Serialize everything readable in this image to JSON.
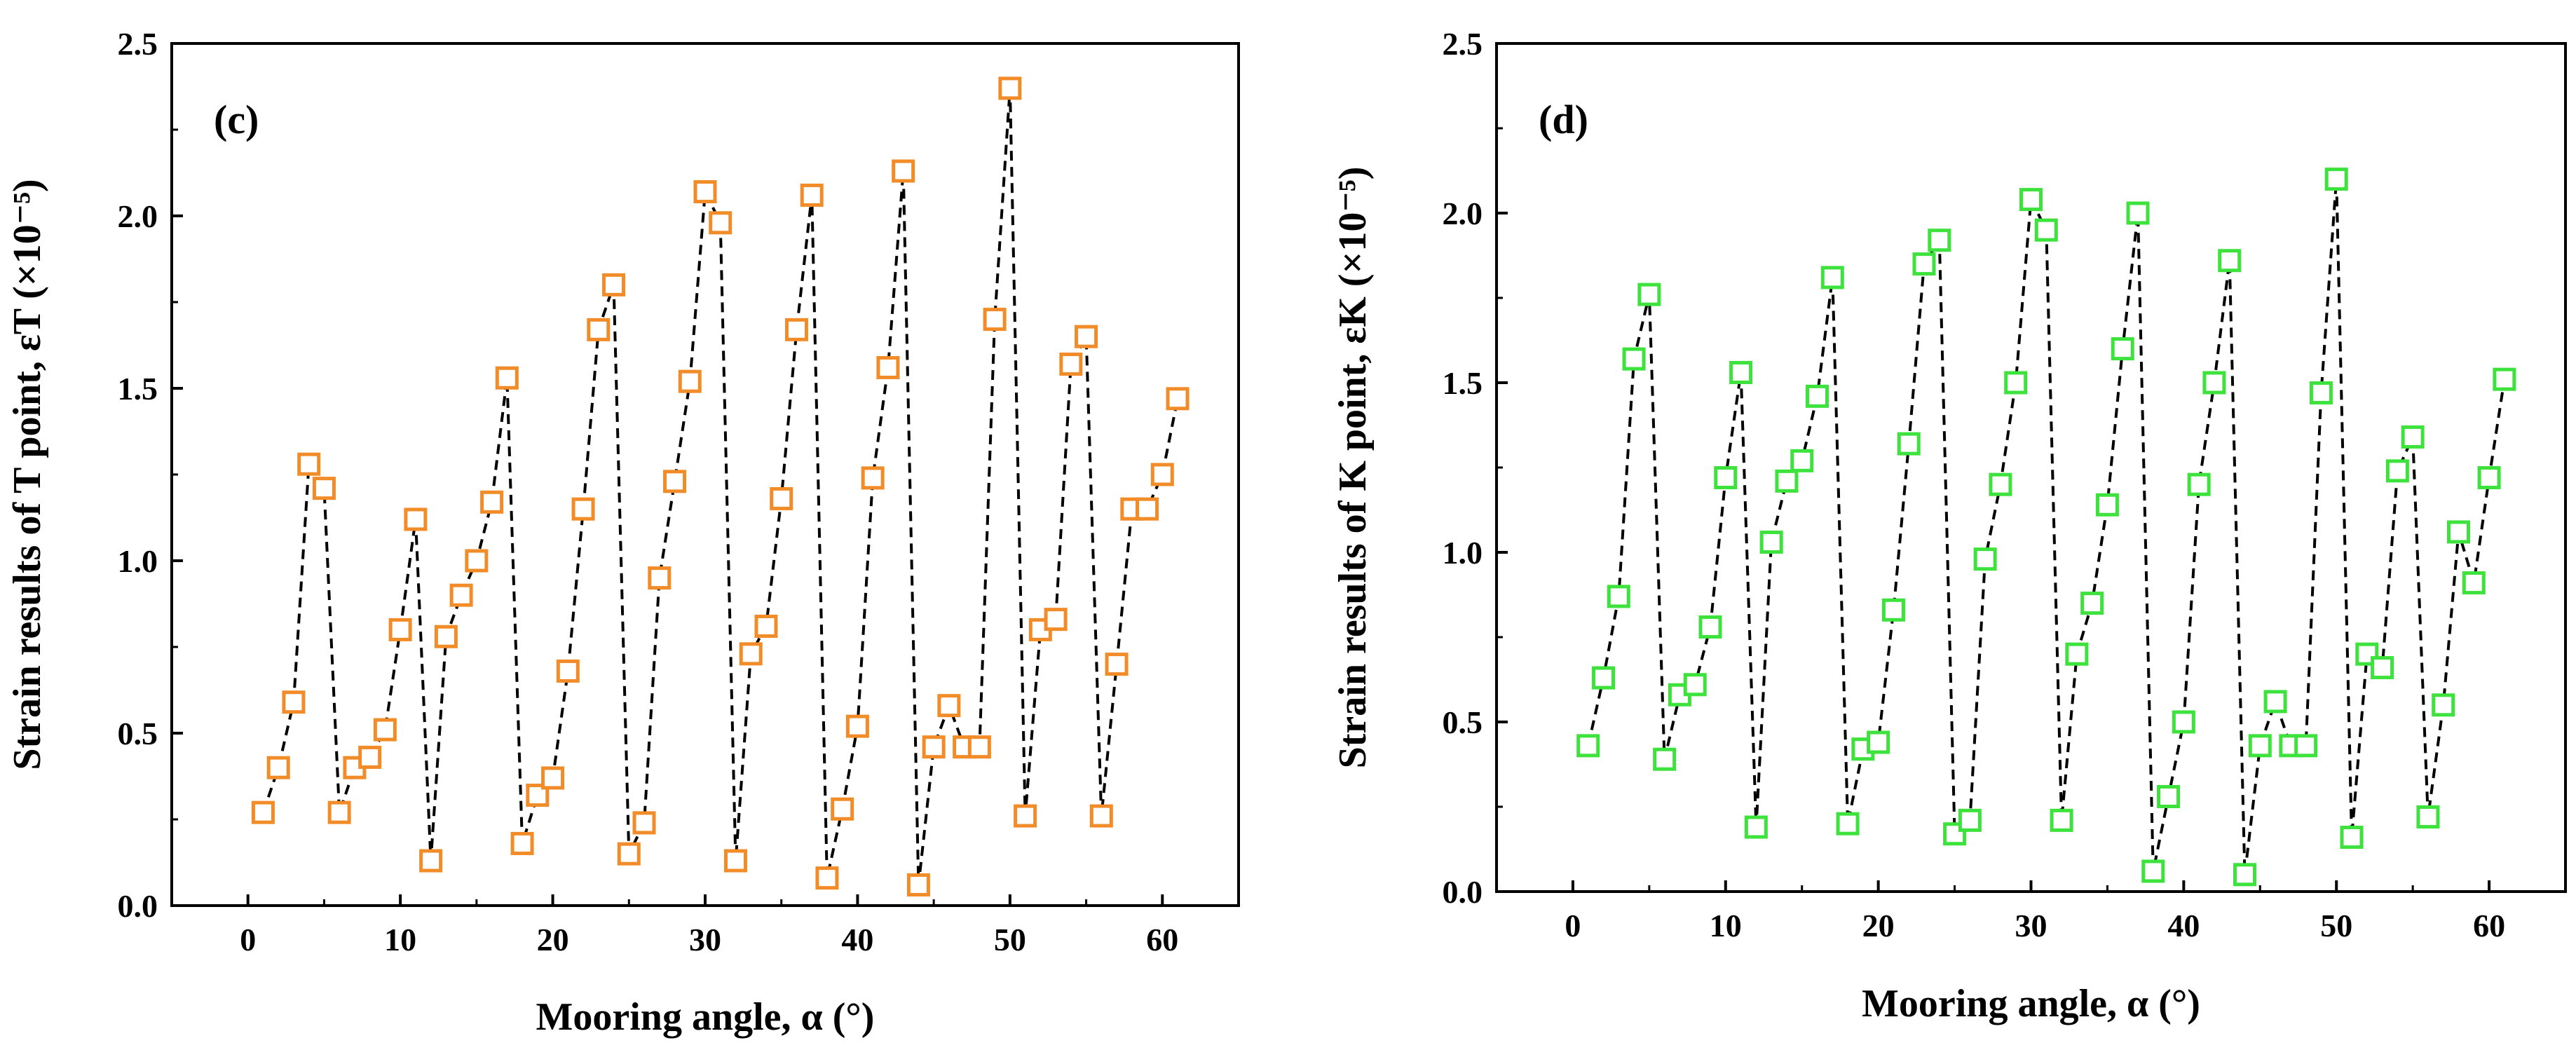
{
  "chart_data": [
    {
      "type": "scatter",
      "panel_label": "(c)",
      "xlabel": "Mooring angle, α (°)",
      "ylabel": "Strain results of T point, εT (×10⁻⁵)",
      "xlim": [
        -5,
        65
      ],
      "ylim": [
        0.0,
        2.5
      ],
      "xticks": [
        "0",
        "10",
        "20",
        "30",
        "40",
        "50",
        "60"
      ],
      "yticks": [
        "0.0",
        "0.5",
        "1.0",
        "1.5",
        "2.0",
        "2.5"
      ],
      "marker_color": "#F28C28",
      "line_style": "dashed-black",
      "x": [
        1,
        2,
        3,
        4,
        5,
        6,
        7,
        8,
        9,
        10,
        11,
        12,
        13,
        14,
        15,
        16,
        17,
        18,
        19,
        20,
        21,
        22,
        23,
        24,
        25,
        26,
        27,
        28,
        29,
        30,
        31,
        32,
        33,
        34,
        35,
        36,
        37,
        38,
        39,
        40,
        41,
        42,
        43,
        44,
        45,
        46,
        47,
        48,
        49,
        50,
        51,
        52,
        53,
        54,
        55,
        56,
        57,
        58,
        59,
        60,
        61
      ],
      "values": [
        0.27,
        0.4,
        0.59,
        1.28,
        1.21,
        0.27,
        0.4,
        0.43,
        0.51,
        0.8,
        1.12,
        0.13,
        0.78,
        0.9,
        1.0,
        1.17,
        1.53,
        0.18,
        0.32,
        0.37,
        0.68,
        1.15,
        1.67,
        1.8,
        0.15,
        0.24,
        0.95,
        1.23,
        1.52,
        2.07,
        1.98,
        0.13,
        0.73,
        0.81,
        1.18,
        1.67,
        2.06,
        0.08,
        0.28,
        0.52,
        1.24,
        1.56,
        2.13,
        0.06,
        0.46,
        0.58,
        0.46,
        0.46,
        1.7,
        2.37,
        0.26,
        0.8,
        0.83,
        1.57,
        1.65,
        0.26,
        0.7,
        1.15,
        1.15,
        1.25,
        1.47
      ]
    },
    {
      "type": "scatter",
      "panel_label": "(d)",
      "xlabel": "Mooring angle, α (°)",
      "ylabel": "Strain results of K point, εK (×10⁻⁵)",
      "xlim": [
        -5,
        65
      ],
      "ylim": [
        0.0,
        2.5
      ],
      "xticks": [
        "0",
        "10",
        "20",
        "30",
        "40",
        "50",
        "60"
      ],
      "yticks": [
        "0.0",
        "0.5",
        "1.0",
        "1.5",
        "2.0",
        "2.5"
      ],
      "marker_color": "#3DE23D",
      "line_style": "dashed-black",
      "x": [
        1,
        2,
        3,
        4,
        5,
        6,
        7,
        8,
        9,
        10,
        11,
        12,
        13,
        14,
        15,
        16,
        17,
        18,
        19,
        20,
        21,
        22,
        23,
        24,
        25,
        26,
        27,
        28,
        29,
        30,
        31,
        32,
        33,
        34,
        35,
        36,
        37,
        38,
        39,
        40,
        41,
        42,
        43,
        44,
        45,
        46,
        47,
        48,
        49,
        50,
        51,
        52,
        53,
        54,
        55,
        56,
        57,
        58,
        59,
        60,
        61
      ],
      "values": [
        0.43,
        0.63,
        0.87,
        1.57,
        1.76,
        0.39,
        0.58,
        0.61,
        0.78,
        1.22,
        1.53,
        0.19,
        1.03,
        1.21,
        1.27,
        1.46,
        1.81,
        0.2,
        0.42,
        0.44,
        0.83,
        1.32,
        1.85,
        1.92,
        0.17,
        0.21,
        0.98,
        1.2,
        1.5,
        2.04,
        1.95,
        0.21,
        0.7,
        0.85,
        1.14,
        1.6,
        2.0,
        0.06,
        0.28,
        0.5,
        1.2,
        1.5,
        1.86,
        0.05,
        0.43,
        0.56,
        0.43,
        0.43,
        1.47,
        2.1,
        0.16,
        0.7,
        0.66,
        1.24,
        1.34,
        0.22,
        0.55,
        1.06,
        0.91,
        1.22,
        1.51
      ]
    }
  ]
}
